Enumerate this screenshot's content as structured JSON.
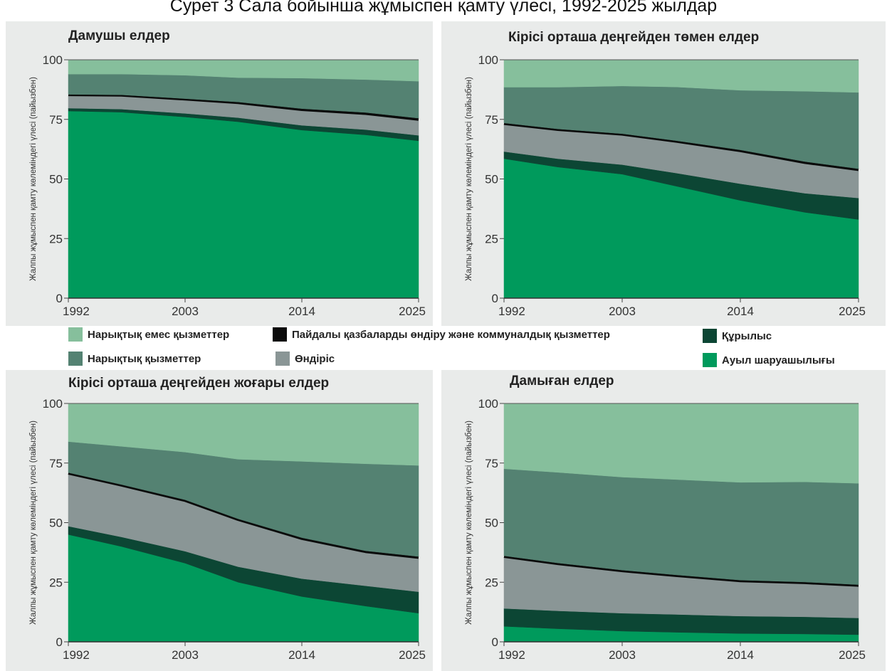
{
  "page_title": "Сурет 3 Сала бойынша жұмыспен қамту үлесі, 1992-2025 жылдар",
  "colors": {
    "non_market_services": "#86bf9c",
    "market_services": "#548272",
    "mining_utilities": "#0a0a0a",
    "manufacturing": "#8a9696",
    "construction": "#0c4634",
    "agriculture": "#009a5c",
    "panel_background": "#e9ebea"
  },
  "legend": {
    "items": [
      {
        "key": "non_market_services",
        "label": "Нарықтық емес қызметтер"
      },
      {
        "key": "mining_utilities",
        "label": "Пайдалы қазбаларды өндіру және коммуналдық қызметтер"
      },
      {
        "key": "construction",
        "label": "Құрылыс"
      },
      {
        "key": "market_services",
        "label": "Нарықтық қызметтер"
      },
      {
        "key": "manufacturing",
        "label": "Өндіріс"
      },
      {
        "key": "agriculture",
        "label": "Ауыл шаруашылығы"
      }
    ]
  },
  "chart_data": [
    {
      "type": "area",
      "stacked": true,
      "title": "Дамушы елдер",
      "ylabel": "Жалпы жұмыспен қамту көлеміндегі үлесі (пайызбен)",
      "xlabel": "",
      "x": [
        1992,
        1997,
        2003,
        2008,
        2014,
        2020,
        2025
      ],
      "x_ticks": [
        "1992",
        "2003",
        "2014",
        "2025"
      ],
      "y_ticks": [
        "0",
        "25",
        "50",
        "75",
        "100"
      ],
      "ylim": [
        0,
        100
      ],
      "series": [
        {
          "key": "agriculture",
          "name": "Ауыл шаруашылығы",
          "values": [
            78.5,
            78,
            76,
            74,
            70.5,
            68.5,
            66
          ]
        },
        {
          "key": "construction",
          "name": "Құрылыс",
          "values": [
            1.2,
            1.3,
            1.5,
            1.7,
            2,
            2.2,
            2.3
          ]
        },
        {
          "key": "manufacturing",
          "name": "Өндіріс",
          "values": [
            5.5,
            5.7,
            5.8,
            6,
            6.2,
            6.3,
            6.2
          ]
        },
        {
          "key": "mining_utilities",
          "name": "Пайдалы қазбаларды өндіру және коммуналдық қызметтер",
          "values": [
            0.3,
            0.3,
            0.4,
            0.6,
            0.8,
            0.9,
            1.0
          ]
        },
        {
          "key": "market_services",
          "name": "Нарықтық қызметтер",
          "values": [
            8.5,
            8.7,
            9.8,
            10.2,
            12.8,
            13.8,
            15.5
          ]
        },
        {
          "key": "non_market_services",
          "name": "Нарықтық емес қызметтер",
          "values": [
            6,
            6,
            6.5,
            7.5,
            7.7,
            8.3,
            9
          ]
        }
      ]
    },
    {
      "type": "area",
      "stacked": true,
      "title": "Кірісі орташа деңгейден төмен елдер",
      "ylabel": "Жалпы жұмыспен қамту көлеміндегі үлесі (пайызбен)",
      "xlabel": "",
      "x": [
        1992,
        1997,
        2003,
        2008,
        2014,
        2020,
        2025
      ],
      "x_ticks": [
        "1992",
        "2003",
        "2014",
        "2025"
      ],
      "y_ticks": [
        "0",
        "25",
        "50",
        "75",
        "100"
      ],
      "ylim": [
        0,
        100
      ],
      "series": [
        {
          "key": "agriculture",
          "name": "Ауыл шаруашылығы",
          "values": [
            58.5,
            55,
            52,
            47,
            41,
            36,
            33
          ]
        },
        {
          "key": "construction",
          "name": "Құрылыс",
          "values": [
            3,
            3.5,
            4,
            5.5,
            7,
            8,
            9
          ]
        },
        {
          "key": "manufacturing",
          "name": "Өндіріс",
          "values": [
            11.5,
            12,
            12.5,
            13,
            13.5,
            12.5,
            11.5
          ]
        },
        {
          "key": "mining_utilities",
          "name": "Пайдалы қазбаларды өндіру және коммуналдық қызметтер",
          "values": [
            0.5,
            0.5,
            0.5,
            0.6,
            0.7,
            0.8,
            0.8
          ]
        },
        {
          "key": "market_services",
          "name": "Нарықтық қызметтер",
          "values": [
            15,
            17.5,
            20,
            22.5,
            25,
            29.5,
            32
          ]
        },
        {
          "key": "non_market_services",
          "name": "Нарықтық емес қызметтер",
          "values": [
            11.5,
            11.5,
            11,
            11.4,
            12.8,
            13.2,
            13.7
          ]
        }
      ]
    },
    {
      "type": "area",
      "stacked": true,
      "title": "Кірісі орташа деңгейден жоғары елдер",
      "ylabel": "Жалпы жұмыспен қамту көлеміндегі үлесі (пайызбен)",
      "xlabel": "",
      "x": [
        1992,
        1997,
        2003,
        2008,
        2014,
        2020,
        2025
      ],
      "x_ticks": [
        "1992",
        "2003",
        "2014",
        "2025"
      ],
      "y_ticks": [
        "0",
        "25",
        "50",
        "75",
        "100"
      ],
      "ylim": [
        0,
        100
      ],
      "series": [
        {
          "key": "agriculture",
          "name": "Ауыл шаруашылығы",
          "values": [
            45,
            40,
            33,
            25,
            19,
            15,
            12
          ]
        },
        {
          "key": "construction",
          "name": "Құрылыс",
          "values": [
            3.5,
            4,
            5,
            6.5,
            7.5,
            8.5,
            9
          ]
        },
        {
          "key": "manufacturing",
          "name": "Өндіріс",
          "values": [
            22,
            21.5,
            21,
            19.5,
            16.5,
            14,
            14
          ]
        },
        {
          "key": "mining_utilities",
          "name": "Пайдалы қазбаларды өндіру және коммуналдық қызметтер",
          "values": [
            0.5,
            0.5,
            0.6,
            0.6,
            0.7,
            0.7,
            0.8
          ]
        },
        {
          "key": "market_services",
          "name": "Нарықтық қызметтер",
          "values": [
            13,
            16,
            20,
            25,
            32,
            36.5,
            38.2
          ]
        },
        {
          "key": "non_market_services",
          "name": "Нарықтық емес қызметтер",
          "values": [
            16,
            18,
            20.4,
            23.4,
            24.3,
            25.3,
            26
          ]
        }
      ]
    },
    {
      "type": "area",
      "stacked": true,
      "title": "Дамыған елдер",
      "ylabel": "Жалпы жұмыспен қамту көлеміндегі үлесі (пайызбен)",
      "xlabel": "",
      "x": [
        1992,
        1997,
        2003,
        2008,
        2014,
        2020,
        2025
      ],
      "x_ticks": [
        "1992",
        "2003",
        "2014",
        "2025"
      ],
      "y_ticks": [
        "0",
        "25",
        "50",
        "75",
        "100"
      ],
      "ylim": [
        0,
        100
      ],
      "series": [
        {
          "key": "agriculture",
          "name": "Ауыл шаруашылығы",
          "values": [
            6.5,
            5.5,
            4.5,
            4,
            3.5,
            3.3,
            3
          ]
        },
        {
          "key": "construction",
          "name": "Құрылыс",
          "values": [
            7.5,
            7.5,
            7.5,
            7.5,
            7.3,
            7.2,
            7
          ]
        },
        {
          "key": "manufacturing",
          "name": "Өндіріс",
          "values": [
            21.5,
            19.5,
            17.5,
            16,
            14.5,
            14,
            13.4
          ]
        },
        {
          "key": "mining_utilities",
          "name": "Пайдалы қазбаларды өндіру және коммуналдық қызметтер",
          "values": [
            0.6,
            0.6,
            0.6,
            0.6,
            0.6,
            0.6,
            0.6
          ]
        },
        {
          "key": "market_services",
          "name": "Нарықтық қызметтер",
          "values": [
            36.5,
            38,
            39,
            40,
            41,
            42,
            42.5
          ]
        },
        {
          "key": "non_market_services",
          "name": "Нарықтық емес қызметтер",
          "values": [
            27.4,
            28.9,
            30.9,
            31.9,
            33.1,
            32.9,
            33.5
          ]
        }
      ]
    }
  ]
}
